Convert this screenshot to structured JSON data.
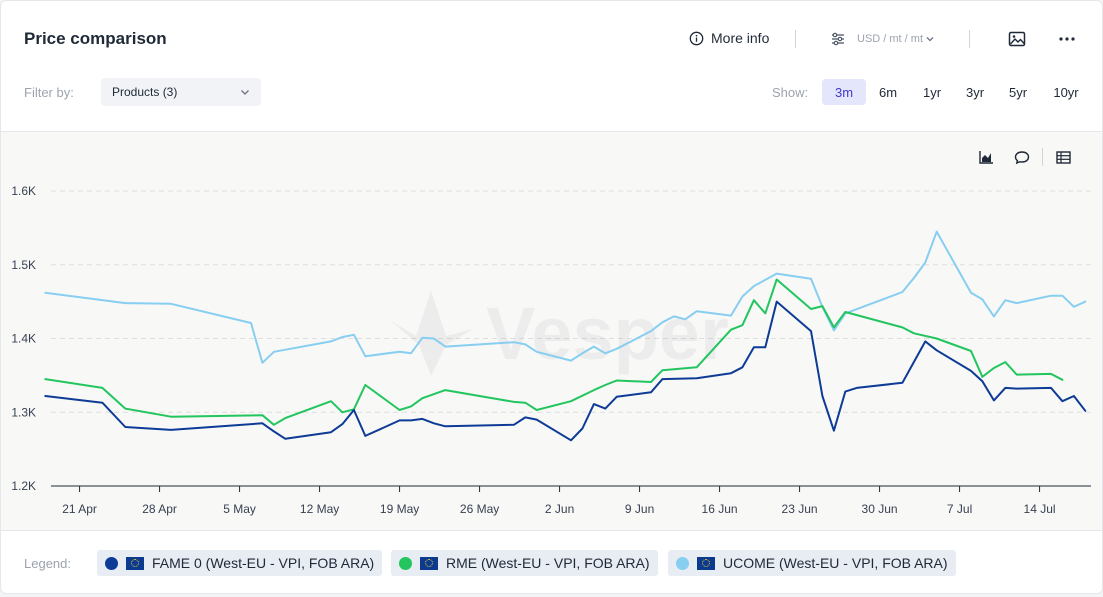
{
  "header": {
    "title": "Price comparison",
    "more_info_label": "More info",
    "units_label": "USD / mt / mt",
    "icons": [
      "info-icon",
      "sliders-icon",
      "chevron-down-icon",
      "image-icon",
      "more-icon"
    ]
  },
  "filter": {
    "label": "Filter by:",
    "selected": "Products (3)"
  },
  "show": {
    "label": "Show:",
    "options": [
      "3m",
      "6m",
      "1yr",
      "3yr",
      "5yr",
      "10yr"
    ],
    "active": "3m"
  },
  "chart_tools": [
    "chart-icon",
    "comment-icon",
    "table-icon"
  ],
  "watermark": "Vesper",
  "legend": {
    "label": "Legend:",
    "items": [
      {
        "name": "FAME 0 (West-EU - VPI, FOB ARA)",
        "color": "#0d3b96"
      },
      {
        "name": "RME (West-EU - VPI, FOB ARA)",
        "color": "#22c55e"
      },
      {
        "name": "UCOME (West-EU - VPI, FOB ARA)",
        "color": "#87cef0"
      }
    ]
  },
  "chart_data": {
    "type": "line",
    "x_tick_labels": [
      "21 Apr",
      "28 Apr",
      "5 May",
      "12 May",
      "19 May",
      "26 May",
      "2 Jun",
      "9 Jun",
      "16 Jun",
      "23 Jun",
      "30 Jun",
      "7 Jul",
      "14 Jul"
    ],
    "y_tick_labels": [
      "1.6K",
      "1.5K",
      "1.4K",
      "1.3K",
      "1.2K"
    ],
    "ylim": [
      1200,
      1600
    ],
    "x_range_days": [
      -2.5,
      88.5
    ],
    "x_unit": "days since 21 Apr",
    "grid": "horizontal dashed",
    "series": [
      {
        "name": "FAME 0 (West-EU - VPI, FOB ARA)",
        "color": "#0d3b96",
        "points": [
          [
            -3,
            1322
          ],
          [
            2,
            1313
          ],
          [
            4,
            1280
          ],
          [
            8,
            1276
          ],
          [
            16,
            1285
          ],
          [
            17,
            1274
          ],
          [
            18,
            1264
          ],
          [
            22,
            1273
          ],
          [
            23,
            1284
          ],
          [
            24,
            1303
          ],
          [
            25,
            1268
          ],
          [
            28,
            1289
          ],
          [
            29,
            1289
          ],
          [
            30,
            1291
          ],
          [
            31,
            1285
          ],
          [
            32,
            1281
          ],
          [
            38,
            1283
          ],
          [
            39,
            1293
          ],
          [
            40,
            1290
          ],
          [
            43,
            1262
          ],
          [
            44,
            1278
          ],
          [
            45,
            1311
          ],
          [
            46,
            1305
          ],
          [
            47,
            1321
          ],
          [
            50,
            1327
          ],
          [
            51,
            1345
          ],
          [
            54,
            1346
          ],
          [
            57,
            1353
          ],
          [
            58,
            1361
          ],
          [
            59,
            1388
          ],
          [
            60,
            1388
          ],
          [
            61,
            1450
          ],
          [
            64,
            1410
          ],
          [
            65,
            1322
          ],
          [
            66,
            1275
          ],
          [
            67,
            1328
          ],
          [
            68,
            1333
          ],
          [
            72,
            1340
          ],
          [
            74,
            1396
          ],
          [
            75,
            1384
          ],
          [
            78,
            1356
          ],
          [
            79,
            1342
          ],
          [
            80,
            1316
          ],
          [
            81,
            1333
          ],
          [
            82,
            1332
          ],
          [
            85,
            1333
          ],
          [
            86,
            1315
          ],
          [
            87,
            1322
          ],
          [
            88,
            1302
          ]
        ]
      },
      {
        "name": "RME (West-EU - VPI, FOB ARA)",
        "color": "#22c55e",
        "points": [
          [
            -3,
            1345
          ],
          [
            2,
            1333
          ],
          [
            4,
            1305
          ],
          [
            8,
            1294
          ],
          [
            16,
            1296
          ],
          [
            17,
            1283
          ],
          [
            18,
            1292
          ],
          [
            22,
            1315
          ],
          [
            23,
            1300
          ],
          [
            24,
            1304
          ],
          [
            25,
            1337
          ],
          [
            28,
            1303
          ],
          [
            29,
            1308
          ],
          [
            30,
            1319
          ],
          [
            32,
            1330
          ],
          [
            38,
            1314
          ],
          [
            39,
            1313
          ],
          [
            40,
            1303
          ],
          [
            43,
            1315
          ],
          [
            45,
            1330
          ],
          [
            46,
            1337
          ],
          [
            47,
            1343
          ],
          [
            50,
            1341
          ],
          [
            51,
            1357
          ],
          [
            54,
            1361
          ],
          [
            57,
            1412
          ],
          [
            58,
            1418
          ],
          [
            59,
            1452
          ],
          [
            60,
            1434
          ],
          [
            61,
            1480
          ],
          [
            64,
            1440
          ],
          [
            65,
            1444
          ],
          [
            66,
            1415
          ],
          [
            67,
            1436
          ],
          [
            72,
            1415
          ],
          [
            73,
            1407
          ],
          [
            75,
            1400
          ],
          [
            78,
            1383
          ],
          [
            79,
            1348
          ],
          [
            80,
            1360
          ],
          [
            81,
            1368
          ],
          [
            82,
            1351
          ],
          [
            85,
            1352
          ],
          [
            86,
            1344
          ]
        ]
      },
      {
        "name": "UCOME (West-EU - VPI, FOB ARA)",
        "color": "#87cef0",
        "points": [
          [
            -3,
            1462
          ],
          [
            4,
            1448
          ],
          [
            8,
            1447
          ],
          [
            15,
            1421
          ],
          [
            16,
            1367
          ],
          [
            17,
            1382
          ],
          [
            22,
            1396
          ],
          [
            23,
            1402
          ],
          [
            24,
            1405
          ],
          [
            25,
            1376
          ],
          [
            28,
            1382
          ],
          [
            29,
            1380
          ],
          [
            30,
            1401
          ],
          [
            31,
            1400
          ],
          [
            32,
            1389
          ],
          [
            38,
            1395
          ],
          [
            39,
            1392
          ],
          [
            40,
            1382
          ],
          [
            43,
            1370
          ],
          [
            44,
            1380
          ],
          [
            45,
            1389
          ],
          [
            46,
            1380
          ],
          [
            47,
            1386
          ],
          [
            50,
            1410
          ],
          [
            51,
            1422
          ],
          [
            52,
            1430
          ],
          [
            53,
            1426
          ],
          [
            54,
            1437
          ],
          [
            57,
            1431
          ],
          [
            58,
            1457
          ],
          [
            59,
            1471
          ],
          [
            61,
            1488
          ],
          [
            64,
            1481
          ],
          [
            65,
            1443
          ],
          [
            66,
            1411
          ],
          [
            67,
            1434
          ],
          [
            72,
            1463
          ],
          [
            73,
            1482
          ],
          [
            74,
            1503
          ],
          [
            75,
            1545
          ],
          [
            78,
            1462
          ],
          [
            79,
            1453
          ],
          [
            80,
            1430
          ],
          [
            81,
            1452
          ],
          [
            82,
            1448
          ],
          [
            85,
            1458
          ],
          [
            86,
            1458
          ],
          [
            87,
            1443
          ],
          [
            88,
            1450
          ]
        ]
      }
    ]
  }
}
